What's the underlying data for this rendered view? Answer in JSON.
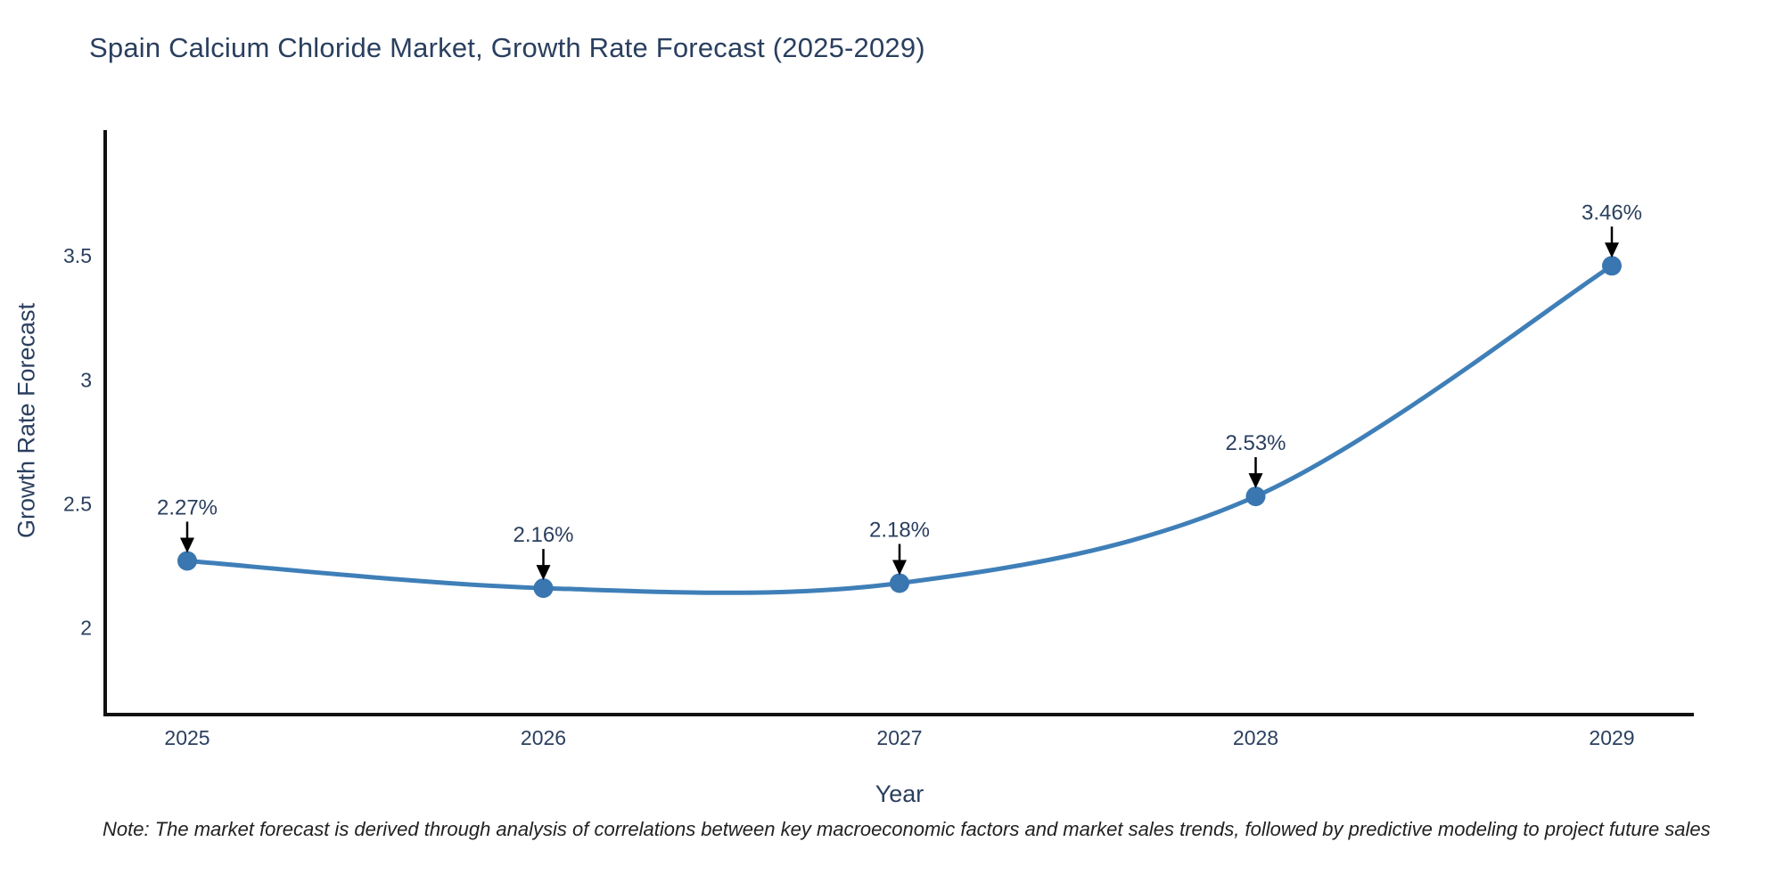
{
  "title": "Spain Calcium Chloride Market, Growth Rate Forecast (2025-2029)",
  "note": "Note: The market forecast is derived through analysis of correlations between key macroeconomic factors and market sales trends, followed by predictive modeling to project future sales",
  "chart_data": {
    "type": "line",
    "title": "Spain Calcium Chloride Market, Growth Rate Forecast (2025-2029)",
    "x": [
      2025,
      2026,
      2027,
      2028,
      2029
    ],
    "series": [
      {
        "name": "Growth Rate Forecast",
        "values": [
          2.27,
          2.16,
          2.18,
          2.53,
          3.46
        ]
      }
    ],
    "point_labels": [
      "2.27%",
      "2.16%",
      "2.18%",
      "2.53%",
      "3.46%"
    ],
    "xlabel": "Year",
    "ylabel": "Growth Rate Forecast",
    "yticks": [
      2,
      2.5,
      3,
      3.5
    ],
    "ylim": [
      1.65,
      4.0
    ],
    "grid": false,
    "legend": "none",
    "smooth": true,
    "line_color": "#3f7fb8",
    "marker_color": "#3a76b0",
    "axis_color": "#111111",
    "text_color": "#2a3f5f",
    "annotation_arrow_color": "#000000"
  }
}
